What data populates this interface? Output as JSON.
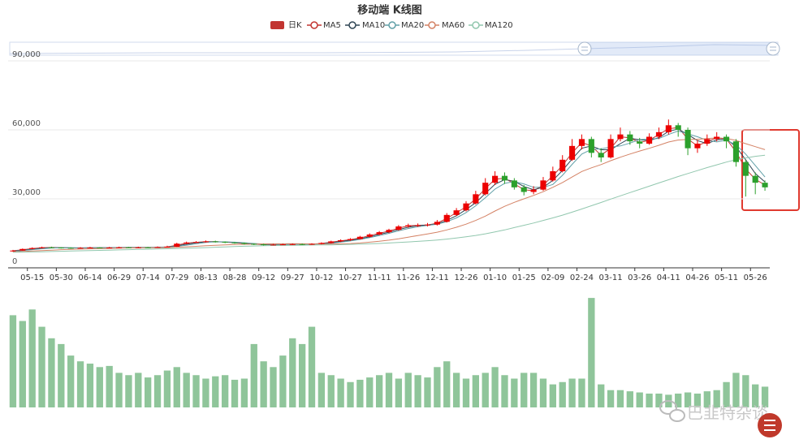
{
  "chart_data": [
    {
      "type": "candlestick",
      "title": "移动端 K线图",
      "categories": [
        null,
        null,
        "05-15",
        null,
        null,
        "05-30",
        null,
        null,
        "06-14",
        null,
        null,
        "06-29",
        null,
        null,
        "07-14",
        null,
        null,
        "07-29",
        null,
        null,
        "08-13",
        null,
        null,
        "08-28",
        null,
        null,
        "09-12",
        null,
        null,
        "09-27",
        null,
        null,
        "10-12",
        null,
        null,
        "10-27",
        null,
        null,
        "11-11",
        null,
        null,
        "11-26",
        null,
        null,
        "12-11",
        null,
        null,
        "12-26",
        null,
        null,
        "01-10",
        null,
        null,
        "01-25",
        null,
        null,
        "02-09",
        null,
        null,
        "02-24",
        null,
        null,
        "03-11",
        null,
        null,
        "03-26",
        null,
        null,
        "04-11",
        null,
        null,
        "04-26",
        null,
        null,
        "05-11",
        null,
        null,
        "05-26",
        null
      ],
      "ylim": [
        0,
        90000
      ],
      "yticks": [
        0,
        {
          "value": 30000,
          "label": "30,000"
        },
        {
          "value": 60000,
          "label": "60,000"
        },
        {
          "value": 90000,
          "label": "90,000"
        }
      ],
      "grid": true,
      "series": [
        {
          "name": "日K",
          "color": "#c23531",
          "up_color": "#ec0000",
          "down_color": "#2ca02c",
          "values": [
            [
              7200,
              7500,
              7000,
              7800
            ],
            [
              7500,
              8200,
              7400,
              8400
            ],
            [
              8200,
              8600,
              8000,
              8900
            ],
            [
              8600,
              8900,
              8400,
              9200
            ],
            [
              8900,
              8800,
              8500,
              9200
            ],
            [
              8800,
              8700,
              8400,
              9000
            ],
            [
              8700,
              8600,
              8300,
              8900
            ],
            [
              8600,
              8700,
              8400,
              9000
            ],
            [
              8700,
              8800,
              8500,
              9100
            ],
            [
              8800,
              8700,
              8500,
              9000
            ],
            [
              8700,
              8800,
              8500,
              9100
            ],
            [
              8800,
              8900,
              8600,
              9200
            ],
            [
              8900,
              8800,
              8600,
              9100
            ],
            [
              8800,
              8900,
              8600,
              9200
            ],
            [
              8900,
              8800,
              8600,
              9100
            ],
            [
              8800,
              9000,
              8700,
              9300
            ],
            [
              9000,
              9200,
              8900,
              9600
            ],
            [
              9200,
              10500,
              9100,
              10900
            ],
            [
              10500,
              11000,
              10300,
              11400
            ],
            [
              11000,
              11200,
              10800,
              11600
            ],
            [
              11200,
              11500,
              11000,
              11900
            ],
            [
              11500,
              11300,
              11000,
              11800
            ],
            [
              11300,
              11000,
              10700,
              11500
            ],
            [
              11000,
              10800,
              10500,
              11200
            ],
            [
              10800,
              10400,
              10100,
              11000
            ],
            [
              10400,
              10200,
              9900,
              10600
            ],
            [
              10200,
              10000,
              9700,
              10500
            ],
            [
              10000,
              10100,
              9800,
              10400
            ],
            [
              10100,
              10200,
              9900,
              10500
            ],
            [
              10200,
              10300,
              10000,
              10600
            ],
            [
              10300,
              10200,
              9900,
              10600
            ],
            [
              10200,
              10400,
              10000,
              10700
            ],
            [
              10400,
              10800,
              10200,
              11100
            ],
            [
              10800,
              11500,
              10600,
              11800
            ],
            [
              11500,
              12000,
              11200,
              12400
            ],
            [
              12000,
              12500,
              11700,
              12900
            ],
            [
              12500,
              13500,
              12300,
              13900
            ],
            [
              13500,
              14500,
              13200,
              15000
            ],
            [
              14500,
              15500,
              14200,
              16000
            ],
            [
              15500,
              16500,
              15100,
              17000
            ],
            [
              16500,
              18000,
              16200,
              18600
            ],
            [
              18000,
              18500,
              17400,
              19200
            ],
            [
              18500,
              18500,
              17800,
              19300
            ],
            [
              18500,
              18800,
              18000,
              19500
            ],
            [
              18800,
              20000,
              18400,
              20800
            ],
            [
              20000,
              23000,
              19700,
              23800
            ],
            [
              23000,
              25000,
              22500,
              26000
            ],
            [
              25000,
              28000,
              24500,
              29000
            ],
            [
              28000,
              32000,
              27500,
              33500
            ],
            [
              32000,
              37000,
              31500,
              39000
            ],
            [
              37000,
              40000,
              36000,
              42000
            ],
            [
              40000,
              38000,
              36500,
              41500
            ],
            [
              38000,
              35000,
              34000,
              39000
            ],
            [
              35000,
              33000,
              31500,
              36000
            ],
            [
              33000,
              34000,
              32000,
              35500
            ],
            [
              34000,
              38000,
              33500,
              39500
            ],
            [
              38000,
              42000,
              37500,
              44000
            ],
            [
              42000,
              47000,
              41500,
              49000
            ],
            [
              47000,
              53000,
              46500,
              56000
            ],
            [
              53000,
              56000,
              51500,
              58000
            ],
            [
              56000,
              50000,
              48000,
              57000
            ],
            [
              50000,
              48000,
              46000,
              52000
            ],
            [
              48000,
              56000,
              47500,
              58000
            ],
            [
              56000,
              58000,
              55000,
              61000
            ],
            [
              58000,
              55000,
              53500,
              59500
            ],
            [
              55000,
              54000,
              52000,
              56500
            ],
            [
              54000,
              57000,
              53500,
              58500
            ],
            [
              57000,
              59000,
              56000,
              61000
            ],
            [
              59000,
              62000,
              58000,
              64500
            ],
            [
              62000,
              60000,
              57000,
              63000
            ],
            [
              60000,
              52000,
              49000,
              61000
            ],
            [
              52000,
              54000,
              50000,
              55500
            ],
            [
              54000,
              56000,
              53000,
              58000
            ],
            [
              56000,
              57000,
              55000,
              59000
            ],
            [
              57000,
              55000,
              52000,
              58000
            ],
            [
              55000,
              46000,
              44000,
              56000
            ],
            [
              46000,
              40000,
              31000,
              47000
            ],
            [
              40000,
              37000,
              32000,
              41500
            ],
            [
              37000,
              35000,
              33500,
              38000
            ]
          ]
        },
        {
          "name": "MA5",
          "color": "#c23531",
          "values": [
            7400,
            7850,
            8400,
            8750,
            8850,
            8750,
            8650,
            8650,
            8750,
            8750,
            8750,
            8850,
            8850,
            8850,
            8850,
            8900,
            9100,
            9850,
            10750,
            11100,
            11350,
            11400,
            11150,
            10900,
            10600,
            10300,
            10100,
            10050,
            10150,
            10250,
            10250,
            10300,
            10600,
            11150,
            11750,
            12250,
            13000,
            14000,
            15000,
            16000,
            17250,
            18250,
            18500,
            18650,
            19400,
            21500,
            24000,
            26500,
            30000,
            34500,
            38500,
            39000,
            36500,
            34000,
            33500,
            36000,
            40000,
            44500,
            50000,
            54500,
            53000,
            49000,
            52000,
            57000,
            56500,
            54500,
            55500,
            58000,
            60500,
            61000,
            56000,
            53000,
            55000,
            56500,
            56000,
            50500,
            43000,
            38500,
            36000
          ]
        },
        {
          "name": "MA10",
          "color": "#2f4554",
          "values": [
            7300,
            7700,
            8100,
            8550,
            8750,
            8800,
            8700,
            8650,
            8700,
            8750,
            8750,
            8800,
            8850,
            8850,
            8850,
            8900,
            9000,
            9550,
            10250,
            10900,
            11250,
            11350,
            11250,
            11050,
            10750,
            10450,
            10200,
            10100,
            10100,
            10200,
            10250,
            10300,
            10450,
            10900,
            11450,
            12000,
            12650,
            13500,
            14500,
            15500,
            16650,
            17650,
            18350,
            18600,
            19100,
            20600,
            22650,
            25350,
            28350,
            32350,
            36350,
            38350,
            37650,
            35350,
            34000,
            35000,
            38000,
            42350,
            47350,
            52000,
            53000,
            51350,
            51350,
            54000,
            56350,
            55650,
            55350,
            56650,
            59350,
            60350,
            58000,
            55350,
            54000,
            55650,
            56000,
            52650,
            47000,
            41000,
            37350
          ]
        },
        {
          "name": "MA20",
          "color": "#61a0a8",
          "values": [
            7200,
            7500,
            7900,
            8300,
            8600,
            8750,
            8750,
            8700,
            8700,
            8700,
            8750,
            8800,
            8800,
            8850,
            8850,
            8850,
            8950,
            9350,
            9850,
            10450,
            11050,
            11300,
            11250,
            11150,
            10900,
            10600,
            10350,
            10200,
            10150,
            10150,
            10200,
            10250,
            10400,
            10700,
            11150,
            11700,
            12350,
            13150,
            14000,
            15000,
            16100,
            17100,
            17850,
            18450,
            18950,
            20050,
            21700,
            24000,
            27000,
            30500,
            34250,
            36750,
            37500,
            36500,
            35000,
            35000,
            36250,
            40250,
            45000,
            49500,
            51500,
            51750,
            52500,
            53000,
            54250,
            55750,
            56000,
            56250,
            58000,
            59500,
            58250,
            57000,
            55500,
            54750,
            55500,
            53500,
            49500,
            44500,
            39500
          ]
        },
        {
          "name": "MA60",
          "color": "#d48265",
          "values": [
            7000,
            7100,
            7300,
            7500,
            7700,
            7900,
            8050,
            8150,
            8250,
            8350,
            8450,
            8550,
            8650,
            8700,
            8750,
            8750,
            8800,
            8950,
            9150,
            9350,
            9600,
            9800,
            10000,
            10150,
            10250,
            10350,
            10400,
            10450,
            10450,
            10500,
            10450,
            10400,
            10350,
            10350,
            10400,
            10550,
            10800,
            11150,
            11550,
            12050,
            12650,
            13350,
            14050,
            14750,
            15500,
            16500,
            17650,
            19000,
            20600,
            22500,
            24700,
            26750,
            28500,
            30000,
            31500,
            33100,
            35000,
            37100,
            39500,
            41900,
            43500,
            44900,
            46600,
            48100,
            49500,
            50800,
            52000,
            53300,
            54700,
            55600,
            55800,
            55900,
            56200,
            56500,
            56300,
            55400,
            54000,
            52700,
            51400
          ]
        },
        {
          "name": "MA120",
          "color": "#91c7ae",
          "values": [
            6800,
            6850,
            6900,
            7000,
            7100,
            7200,
            7300,
            7400,
            7500,
            7600,
            7700,
            7800,
            7900,
            8000,
            8100,
            8200,
            8300,
            8400,
            8500,
            8650,
            8800,
            8950,
            9100,
            9250,
            9400,
            9500,
            9600,
            9700,
            9750,
            9800,
            9850,
            9900,
            9950,
            10000,
            10100,
            10200,
            10300,
            10450,
            10600,
            10800,
            11000,
            11250,
            11500,
            11800,
            12100,
            12500,
            12950,
            13500,
            14100,
            14800,
            15600,
            16500,
            17500,
            18500,
            19500,
            20600,
            21700,
            22900,
            24200,
            25600,
            27000,
            28400,
            29900,
            31300,
            32700,
            34100,
            35500,
            36900,
            38300,
            39700,
            41000,
            42300,
            43600,
            44800,
            46000,
            47000,
            47800,
            48500,
            49000
          ]
        }
      ]
    },
    {
      "type": "bar",
      "color": "#8fc59a",
      "ylim": [
        0,
        100
      ],
      "values": [
        80,
        75,
        85,
        70,
        60,
        55,
        45,
        40,
        38,
        35,
        36,
        30,
        28,
        30,
        26,
        28,
        32,
        35,
        30,
        28,
        25,
        27,
        28,
        24,
        25,
        55,
        40,
        35,
        45,
        60,
        55,
        70,
        30,
        28,
        25,
        22,
        24,
        26,
        28,
        30,
        25,
        30,
        28,
        26,
        35,
        40,
        30,
        25,
        28,
        30,
        35,
        28,
        25,
        30,
        30,
        25,
        20,
        22,
        25,
        25,
        95,
        20,
        15,
        15,
        14,
        13,
        12,
        12,
        11,
        12,
        13,
        12,
        14,
        15,
        22,
        30,
        28,
        20,
        18
      ]
    }
  ],
  "watermark": "巴韭特杂谈"
}
